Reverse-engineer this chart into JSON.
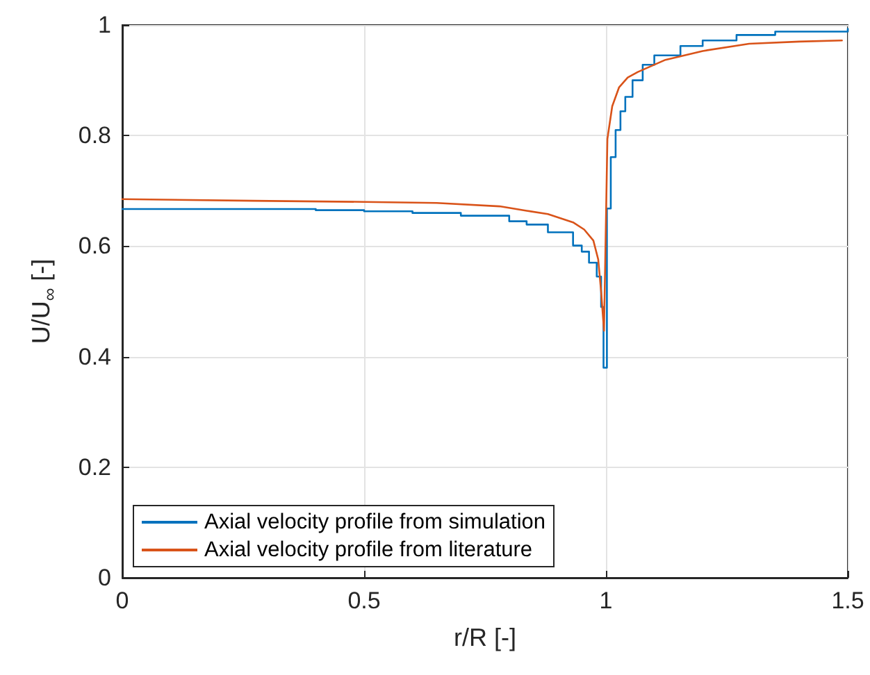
{
  "chart_data": {
    "type": "line",
    "xlabel": "r/R [-]",
    "ylabel": "U/U$_{∞}$ [-]",
    "xlim": [
      0,
      1.5
    ],
    "xticks": [
      0,
      0.5,
      1,
      1.5
    ],
    "ylim": [
      0,
      1
    ],
    "yticks": [
      0,
      0.2,
      0.4,
      0.6,
      0.8,
      1
    ],
    "grid": true,
    "legend": "bottom left",
    "marker": "none",
    "line_style": "solid",
    "series": [
      {
        "name": "Axial velocity profile from simulation",
        "type": "step",
        "color": "#0072bd",
        "x": [
          0,
          0.2,
          0.4,
          0.5,
          0.6,
          0.7,
          0.8,
          0.836,
          0.88,
          0.932,
          0.95,
          0.965,
          0.981,
          0.99,
          0.995,
          1.002,
          1.005,
          1.01,
          1.02,
          1.03,
          1.04,
          1.055,
          1.076,
          1.1,
          1.154,
          1.2,
          1.27,
          1.35,
          1.5
        ],
        "values": [
          0.667,
          0.667,
          0.665,
          0.663,
          0.66,
          0.655,
          0.645,
          0.639,
          0.625,
          0.601,
          0.59,
          0.57,
          0.545,
          0.49,
          0.38,
          0.668,
          0.668,
          0.761,
          0.81,
          0.844,
          0.87,
          0.9,
          0.928,
          0.945,
          0.962,
          0.972,
          0.982,
          0.988,
          0.993
        ]
      },
      {
        "name": "Axial velocity profile from literature",
        "color": "#d95319",
        "x": [
          0,
          0.27,
          0.5,
          0.65,
          0.78,
          0.836,
          0.88,
          0.932,
          0.955,
          0.974,
          0.984,
          0.99,
          0.996,
          1.003,
          1.013,
          1.027,
          1.045,
          1.066,
          1.123,
          1.2,
          1.296,
          1.4,
          1.488
        ],
        "values": [
          0.685,
          0.682,
          0.68,
          0.678,
          0.672,
          0.664,
          0.658,
          0.643,
          0.63,
          0.61,
          0.576,
          0.518,
          0.447,
          0.794,
          0.853,
          0.887,
          0.905,
          0.915,
          0.937,
          0.953,
          0.966,
          0.97,
          0.972
        ]
      }
    ]
  }
}
